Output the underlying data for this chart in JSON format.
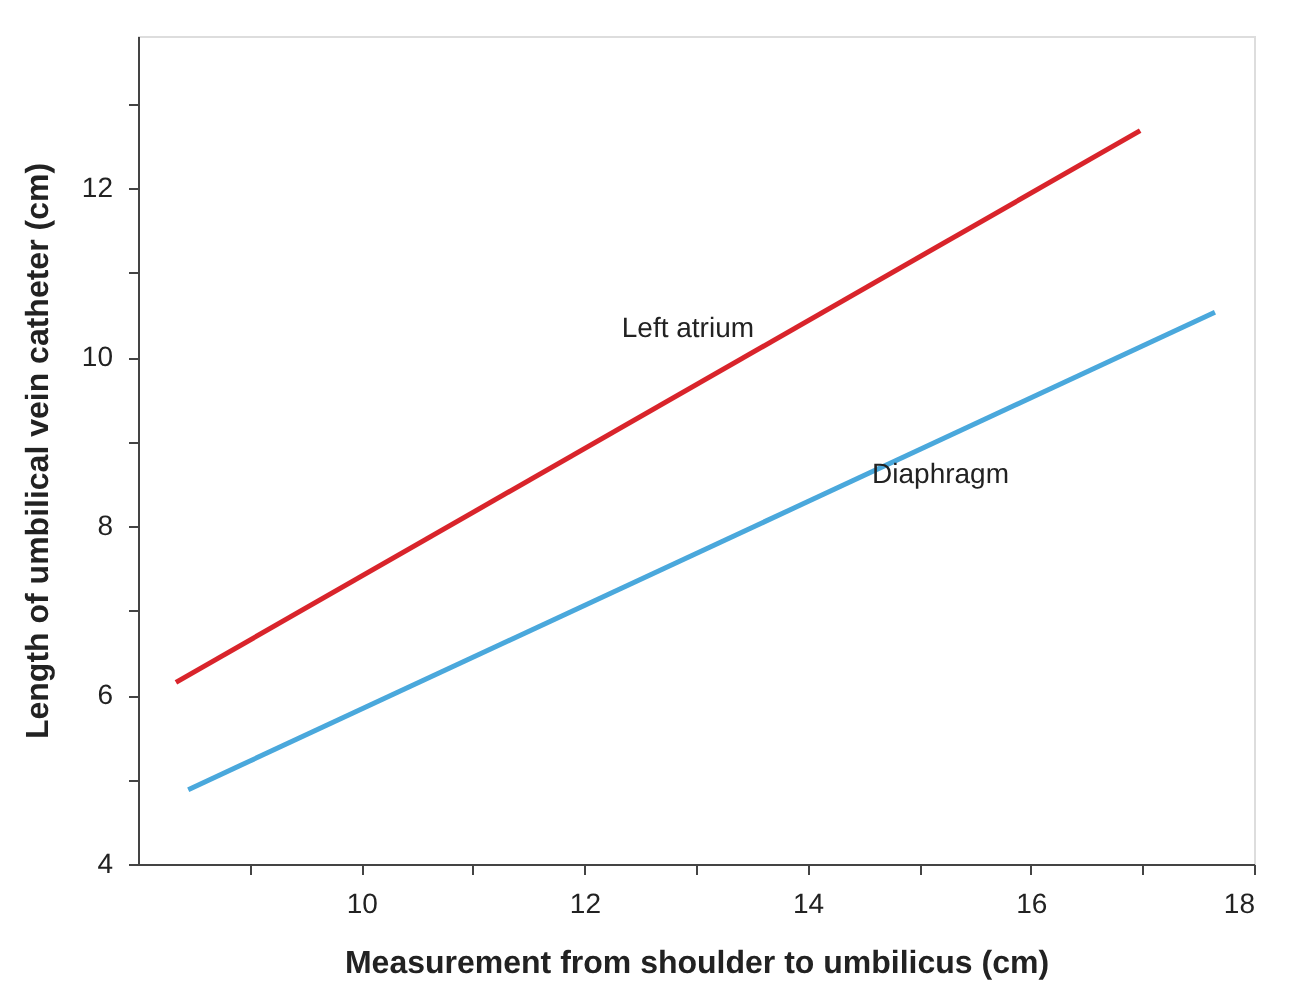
{
  "chart_data": {
    "type": "line",
    "xlabel": "Measurement from shoulder to umbilicus (cm)",
    "ylabel": "Length of umbilical vein catheter (cm)",
    "xlim": [
      8,
      18
    ],
    "ylim": [
      4,
      13.8
    ],
    "xticks": [
      {
        "value": 9,
        "label": null
      },
      10,
      {
        "value": 11,
        "label": null
      },
      12,
      {
        "value": 13,
        "label": null
      },
      14,
      {
        "value": 15,
        "label": null
      },
      16,
      {
        "value": 17,
        "label": null
      },
      18
    ],
    "yticks": [
      4,
      {
        "value": 5,
        "label": null
      },
      6,
      {
        "value": 7,
        "label": null
      },
      8,
      {
        "value": 9,
        "label": null
      },
      10,
      {
        "value": 11,
        "label": null
      },
      12,
      {
        "value": 13,
        "label": null
      }
    ],
    "series": [
      {
        "name": "Left atrium",
        "color": "#d9242b",
        "x": [
          8.34,
          16.98
        ],
        "values": [
          6.15,
          12.68
        ]
      },
      {
        "name": "Diaphragm",
        "color": "#4aa8dc",
        "x": [
          8.45,
          17.65
        ],
        "values": [
          4.88,
          10.53
        ]
      }
    ],
    "grid": false,
    "legend": false,
    "marker": "none",
    "line_style": "solid"
  }
}
